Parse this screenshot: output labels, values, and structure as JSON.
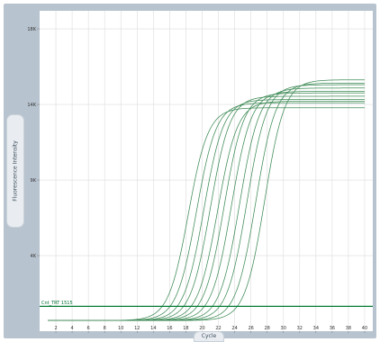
{
  "chart_data": {
    "type": "line",
    "xlabel": "Cycle",
    "ylabel": "Fluorescence Intensity",
    "xlim": [
      0,
      41
    ],
    "ylim": [
      0,
      19500
    ],
    "x_ticks": [
      2,
      4,
      6,
      8,
      10,
      12,
      14,
      16,
      18,
      20,
      22,
      24,
      26,
      28,
      30,
      32,
      34,
      36,
      38,
      40
    ],
    "y_ticks": [
      {
        "value": 4600,
        "label": "4K"
      },
      {
        "value": 9200,
        "label": "9K"
      },
      {
        "value": 13800,
        "label": "14K"
      },
      {
        "value": 18400,
        "label": "18K"
      }
    ],
    "grid": true,
    "line_color": "#3d8a55",
    "threshold": {
      "label": "Cnt_TRT   1515",
      "value": 1515,
      "color": "#007a33"
    },
    "curves": [
      {
        "midpoint": 18.3,
        "plateau": 13600
      },
      {
        "midpoint": 19.3,
        "plateau": 13900
      },
      {
        "midpoint": 20.2,
        "plateau": 14100
      },
      {
        "midpoint": 21.0,
        "plateau": 14300
      },
      {
        "midpoint": 21.9,
        "plateau": 14000
      },
      {
        "midpoint": 22.7,
        "plateau": 14500
      },
      {
        "midpoint": 23.6,
        "plateau": 14600
      },
      {
        "midpoint": 24.6,
        "plateau": 14800
      },
      {
        "midpoint": 25.5,
        "plateau": 15000
      },
      {
        "midpoint": 26.6,
        "plateau": 15100
      },
      {
        "midpoint": 27.7,
        "plateau": 15300
      }
    ]
  }
}
